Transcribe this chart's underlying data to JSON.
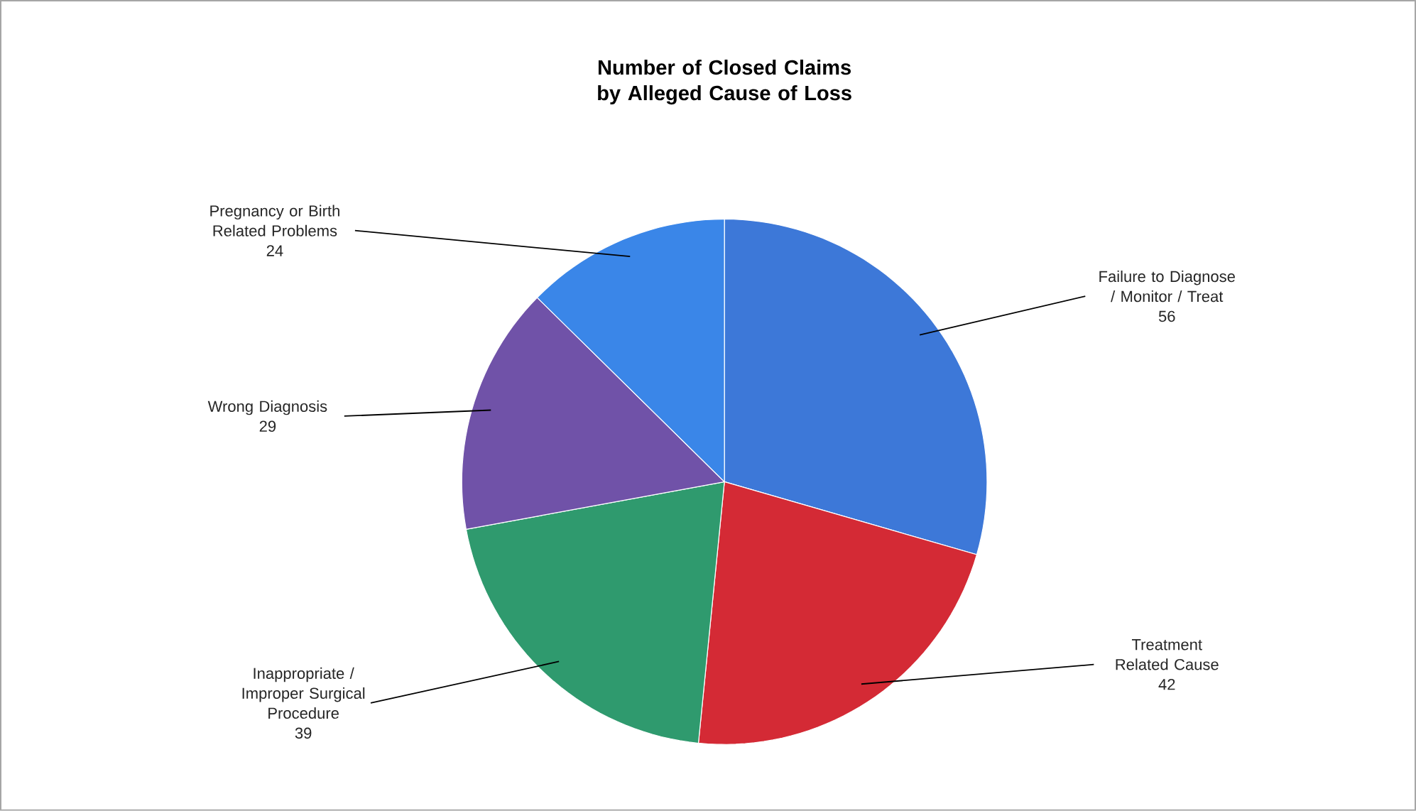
{
  "chart_data": {
    "type": "pie",
    "title": "Number of Closed Claims by Alleged Cause of Loss",
    "categories": [
      "Failure to Diagnose / Monitor / Treat",
      "Treatment Related Cause",
      "Inappropriate / Improper Surgical Procedure",
      "Wrong Diagnosis",
      "Pregnancy or Birth Related Problems"
    ],
    "values": [
      56,
      42,
      39,
      29,
      24
    ],
    "colors": [
      "#3d78d8",
      "#d42a35",
      "#2f9a6e",
      "#7052a8",
      "#3a86e8"
    ],
    "data_labels": true
  }
}
